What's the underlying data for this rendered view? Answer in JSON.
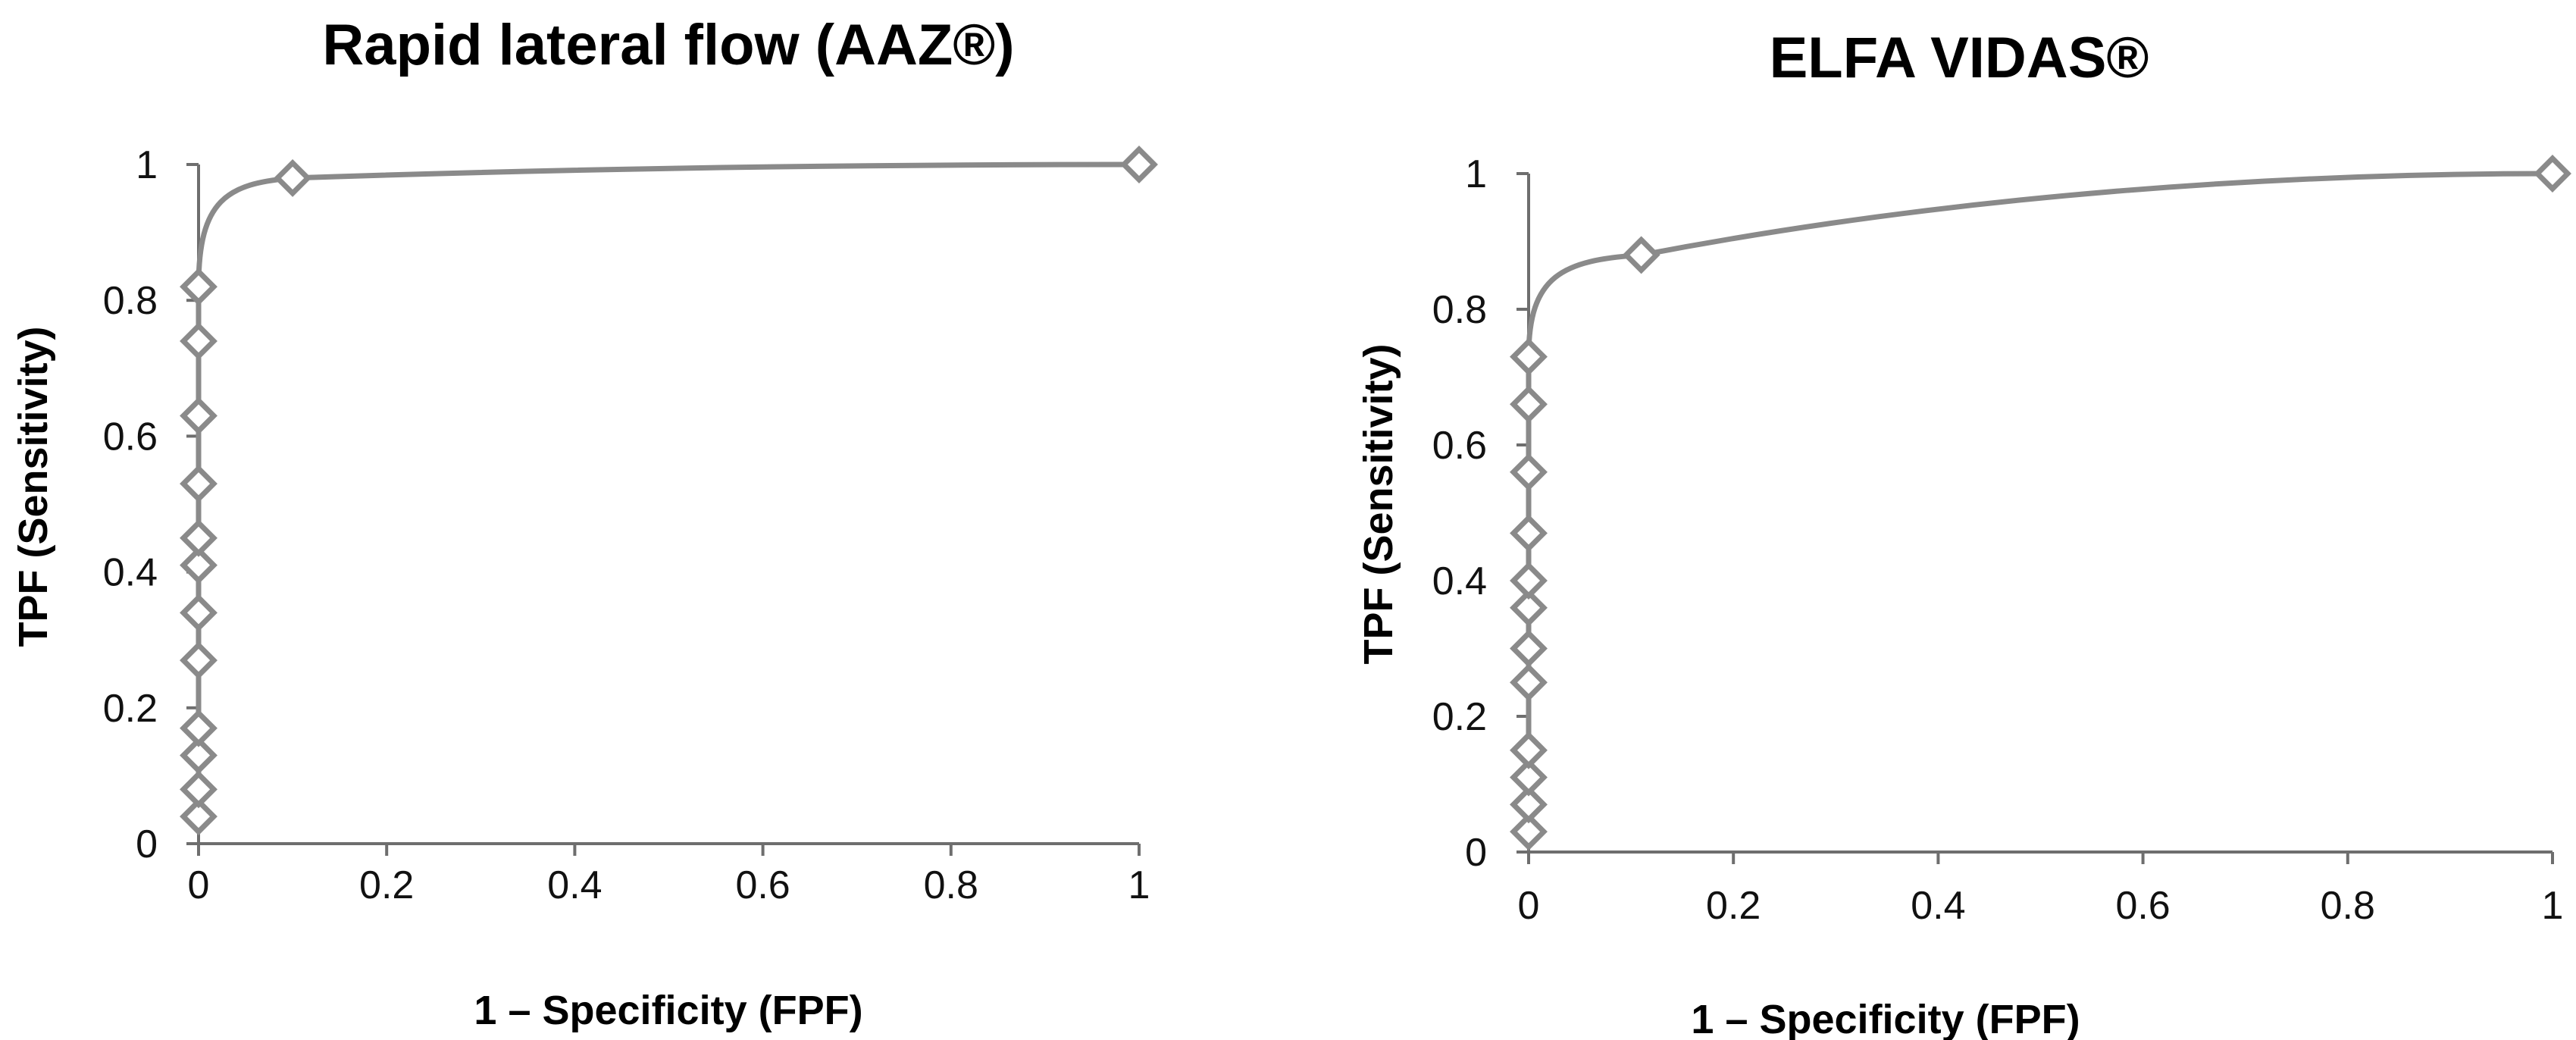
{
  "chart_data": [
    {
      "type": "line",
      "title": "Rapid lateral flow (AAZ®)",
      "xlabel": "1 – Specificity (FPF)",
      "ylabel": "TPF (Sensitivity)",
      "xlim": [
        0,
        1
      ],
      "ylim": [
        0,
        1
      ],
      "xticks": [
        "0",
        "0.2",
        "0.4",
        "0.6",
        "0.8",
        "1"
      ],
      "yticks": [
        "0",
        "0.2",
        "0.4",
        "0.6",
        "0.8",
        "1"
      ],
      "grid": false,
      "smooth": true,
      "color": "#8a8a8a",
      "series": [
        {
          "x": [
            0,
            0,
            0,
            0,
            0,
            0,
            0,
            0,
            0,
            0,
            0,
            0,
            0.1,
            1
          ],
          "y": [
            0.04,
            0.08,
            0.13,
            0.17,
            0.27,
            0.34,
            0.41,
            0.45,
            0.53,
            0.63,
            0.74,
            0.82,
            0.98,
            1.0
          ]
        }
      ]
    },
    {
      "type": "line",
      "title": "ELFA VIDAS®",
      "xlabel": "1 – Specificity (FPF)",
      "ylabel": "TPF (Sensitivity)",
      "xlim": [
        0,
        1
      ],
      "ylim": [
        0,
        1
      ],
      "xticks": [
        "0",
        "0.2",
        "0.4",
        "0.6",
        "0.8",
        "1"
      ],
      "yticks": [
        "0",
        "0.2",
        "0.4",
        "0.6",
        "0.8",
        "1"
      ],
      "grid": false,
      "smooth": true,
      "color": "#8a8a8a",
      "series": [
        {
          "x": [
            0,
            0,
            0,
            0,
            0,
            0,
            0,
            0,
            0,
            0,
            0,
            0,
            0.11,
            1
          ],
          "y": [
            0.03,
            0.07,
            0.11,
            0.15,
            0.25,
            0.3,
            0.36,
            0.4,
            0.47,
            0.56,
            0.66,
            0.73,
            0.88,
            1.0
          ]
        }
      ]
    }
  ]
}
